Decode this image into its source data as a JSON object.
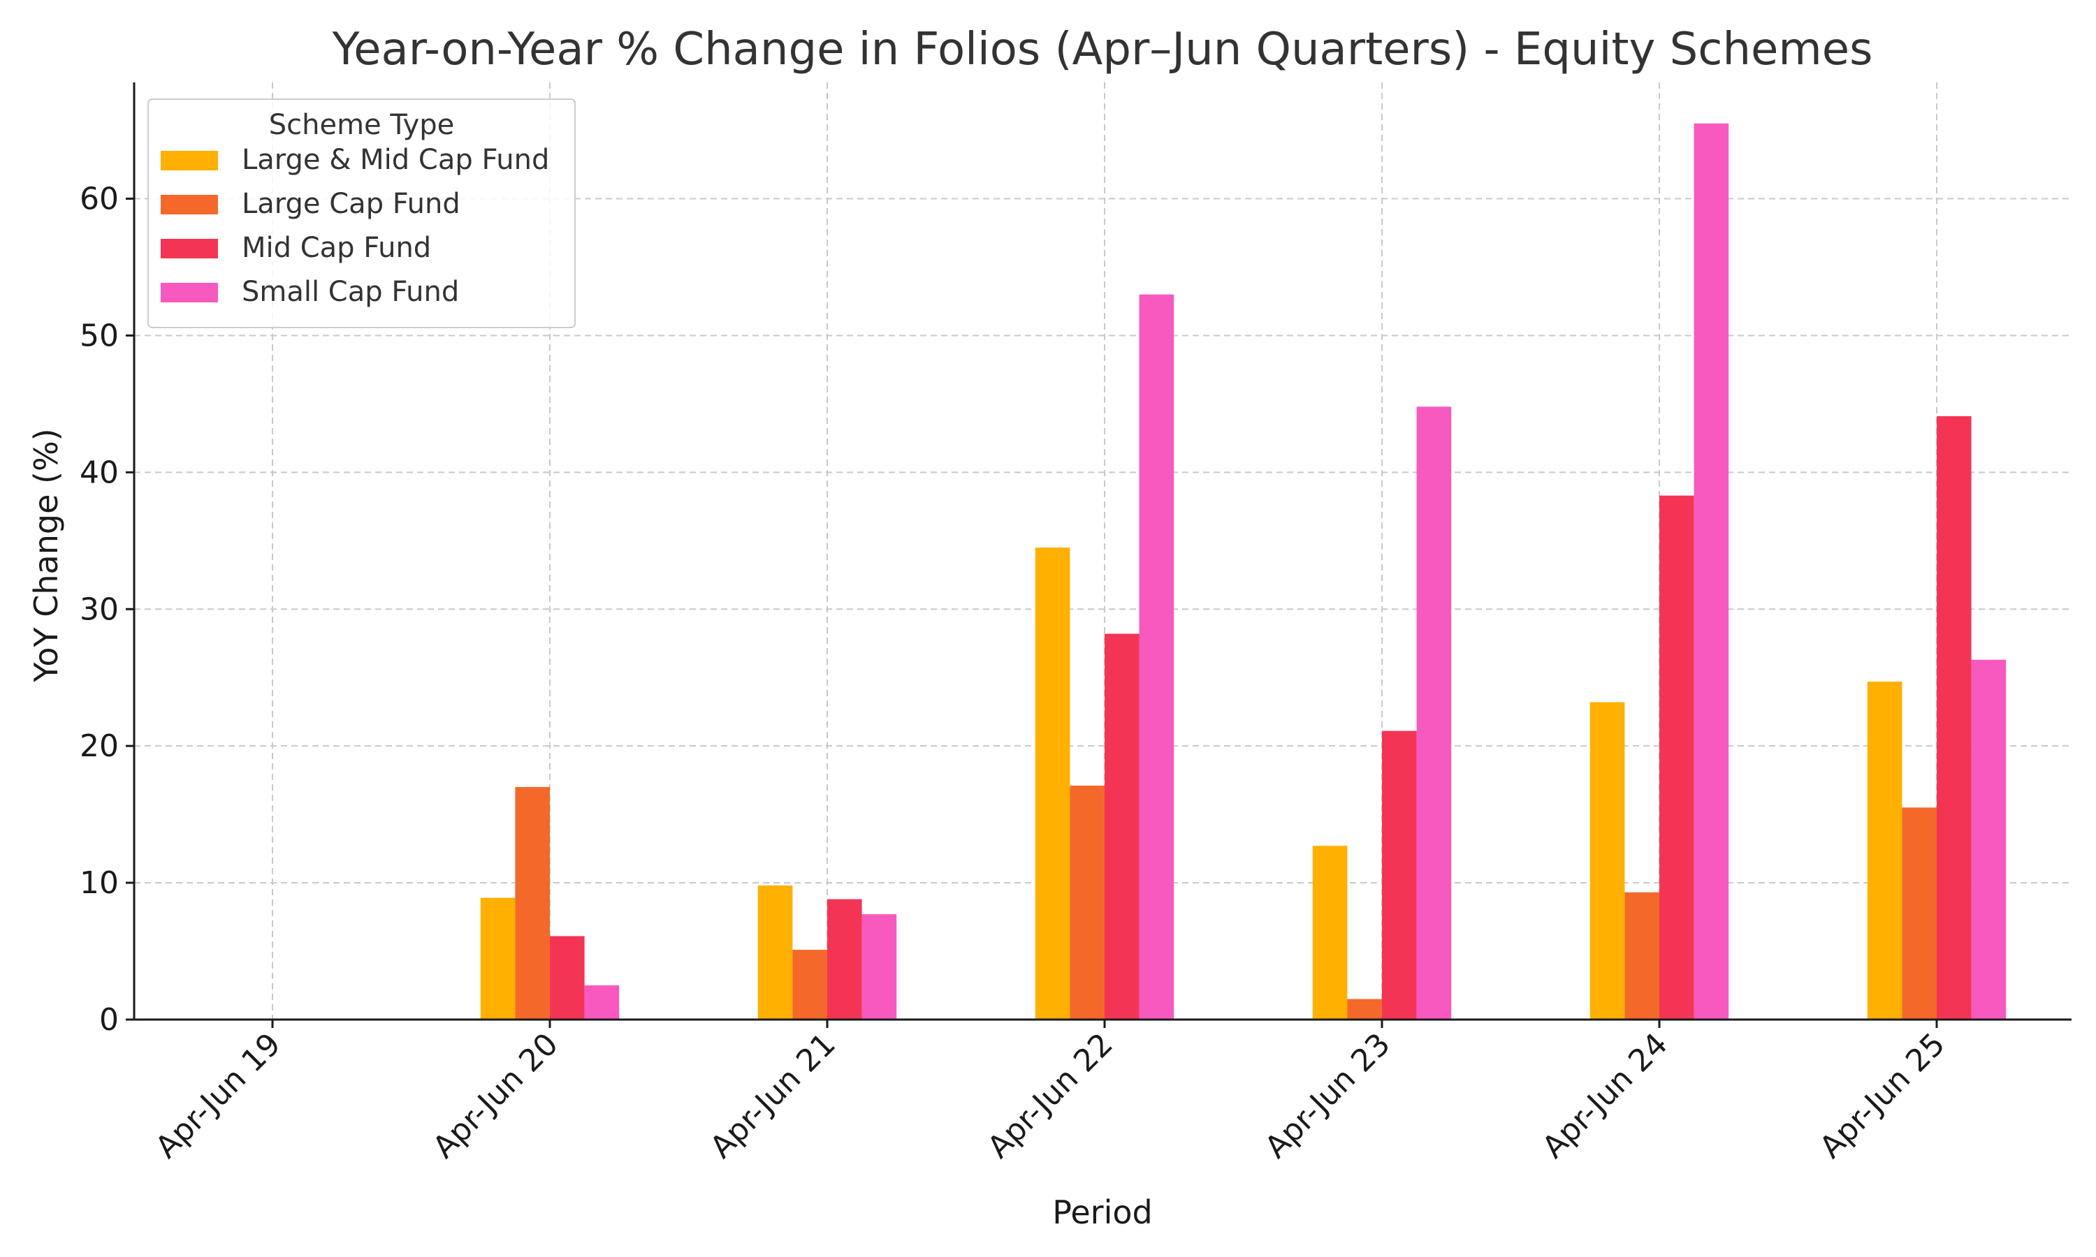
{
  "chart_data": {
    "type": "bar",
    "title": "Year-on-Year % Change in Folios (Apr–Jun Quarters) - Equity Schemes",
    "xlabel": "Period",
    "ylabel": "YoY Change (%)",
    "ylim": [
      0,
      68.5
    ],
    "yticks": [
      0,
      10,
      20,
      30,
      40,
      50,
      60
    ],
    "grid": true,
    "legend": {
      "title": "Scheme Type",
      "placement": "top-left"
    },
    "categories": [
      "Apr-Jun 19",
      "Apr-Jun 20",
      "Apr-Jun 21",
      "Apr-Jun 22",
      "Apr-Jun 23",
      "Apr-Jun 24",
      "Apr-Jun 25"
    ],
    "series": [
      {
        "name": "Large & Mid Cap Fund",
        "color": "#FFB000",
        "values": [
          null,
          8.9,
          9.8,
          34.5,
          12.7,
          23.2,
          24.7
        ]
      },
      {
        "name": "Large Cap Fund",
        "color": "#F4692A",
        "values": [
          null,
          17.0,
          5.1,
          17.1,
          1.5,
          9.3,
          15.5
        ]
      },
      {
        "name": "Mid Cap Fund",
        "color": "#F43455",
        "values": [
          null,
          6.1,
          8.8,
          28.2,
          21.1,
          38.3,
          44.1
        ]
      },
      {
        "name": "Small Cap Fund",
        "color": "#F859BE",
        "values": [
          null,
          2.5,
          7.7,
          53.0,
          44.8,
          65.5,
          26.3
        ]
      }
    ]
  }
}
